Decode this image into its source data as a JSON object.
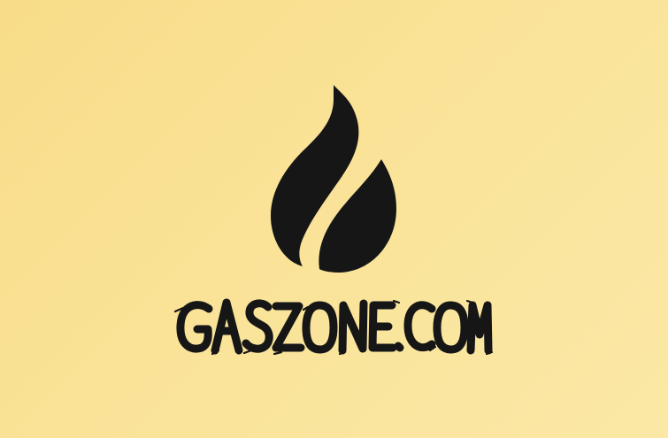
{
  "logo": {
    "icon": "flame-drop-icon",
    "wordmark_text": "GASZONE.COM",
    "ink_color": "#161616",
    "background_color": "#f9df93"
  }
}
